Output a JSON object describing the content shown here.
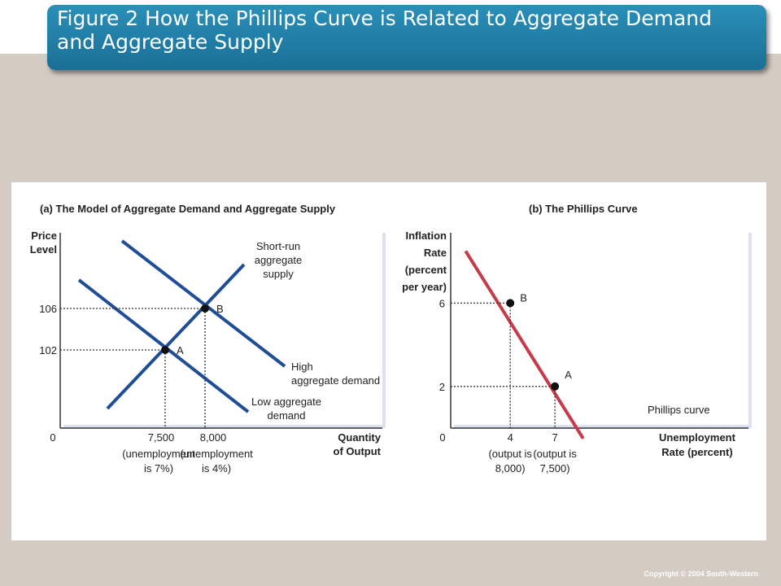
{
  "header": {
    "title": "Figure 2 How the Phillips Curve is Related to Aggregate Demand and Aggregate Supply"
  },
  "footer": {
    "copyright": "Copyright © 2004  South-Western"
  },
  "chart_data": [
    {
      "panel": "(a) The Model of Aggregate Demand and Aggregate Supply",
      "type": "line",
      "ylabel": [
        "Price",
        "Level"
      ],
      "xlabel": [
        "Quantity",
        "of Output"
      ],
      "y_ticks": [
        "106",
        "102"
      ],
      "origin": "0",
      "x_ticks": [
        {
          "value": "7,500",
          "sub": [
            "(unemployment",
            "is 7%)"
          ]
        },
        {
          "value": "8,000",
          "sub": [
            "(unemployment",
            "is 4%)"
          ]
        }
      ],
      "curves": [
        {
          "label": [
            "Short-run",
            "aggregate",
            "supply"
          ]
        },
        {
          "label": [
            "High",
            "aggregate demand"
          ]
        },
        {
          "label": [
            "Low aggregate",
            "demand"
          ]
        }
      ],
      "points": [
        {
          "label": "A",
          "x": "7,500",
          "y": "102"
        },
        {
          "label": "B",
          "x": "8,000",
          "y": "106"
        }
      ]
    },
    {
      "panel": "(b) The Phillips Curve",
      "type": "line",
      "ylabel": [
        "Inflation",
        "Rate",
        "(percent",
        "per year)"
      ],
      "xlabel": [
        "Unemployment",
        "Rate (percent)"
      ],
      "y_ticks": [
        "6",
        "2"
      ],
      "origin": "0",
      "x_ticks": [
        {
          "value": "4",
          "sub": [
            "(output is",
            "8,000)"
          ]
        },
        {
          "value": "7",
          "sub": [
            "(output is",
            "7,500)"
          ]
        }
      ],
      "curves": [
        {
          "label": [
            "Phillips curve"
          ]
        }
      ],
      "points": [
        {
          "label": "B",
          "x": 4,
          "y": 6
        },
        {
          "label": "A",
          "x": 7,
          "y": 2
        }
      ]
    }
  ]
}
